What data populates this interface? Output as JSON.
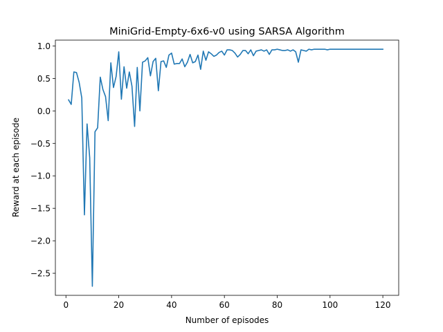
{
  "chart_data": {
    "type": "line",
    "title": "MiniGrid-Empty-6x6-v0 using SARSA Algorithm",
    "xlabel": "Number of episodes",
    "ylabel": "Reward at each episode",
    "xlim": [
      -4,
      126
    ],
    "ylim": [
      -2.84,
      1.09
    ],
    "xticks": [
      0,
      20,
      40,
      60,
      80,
      100,
      120
    ],
    "yticks": [
      1.0,
      0.5,
      0.0,
      -0.5,
      -1.0,
      -1.5,
      -2.0,
      -2.5
    ],
    "xtick_labels": [
      "0",
      "20",
      "40",
      "60",
      "80",
      "100",
      "120"
    ],
    "ytick_labels": [
      "1.0",
      "0.5",
      "0.0",
      "−0.5",
      "−1.0",
      "−1.5",
      "−2.0",
      "−2.5"
    ],
    "grid": false,
    "line_color": "#1f77b4",
    "series": [
      {
        "x": [
          1,
          2,
          3,
          4,
          5,
          6,
          7,
          8,
          9,
          10,
          11,
          12,
          13,
          14,
          15,
          16,
          17,
          18,
          19,
          20,
          21,
          22,
          23,
          24,
          25,
          26,
          27,
          28,
          29,
          30,
          31,
          32,
          33,
          34,
          35,
          36,
          37,
          38,
          39,
          40,
          41,
          42,
          43,
          44,
          45,
          46,
          47,
          48,
          49,
          50,
          51,
          52,
          53,
          54,
          55,
          56,
          57,
          58,
          59,
          60,
          61,
          62,
          63,
          64,
          65,
          66,
          67,
          68,
          69,
          70,
          71,
          72,
          73,
          74,
          75,
          76,
          77,
          78,
          79,
          80,
          81,
          82,
          83,
          84,
          85,
          86,
          87,
          88,
          89,
          90,
          91,
          92,
          93,
          94,
          95,
          96,
          97,
          98,
          99,
          100,
          101,
          102,
          103,
          104,
          105,
          106,
          107,
          108,
          109,
          110,
          111,
          112,
          113,
          114,
          115,
          116,
          117,
          118,
          119,
          120
        ],
        "values": [
          0.17,
          0.1,
          0.6,
          0.59,
          0.44,
          0.2,
          -1.6,
          -0.2,
          -0.72,
          -2.7,
          -0.32,
          -0.26,
          0.52,
          0.33,
          0.22,
          -0.15,
          0.74,
          0.36,
          0.53,
          0.91,
          0.18,
          0.68,
          0.35,
          0.6,
          0.38,
          -0.24,
          0.67,
          0.0,
          0.75,
          0.77,
          0.82,
          0.54,
          0.76,
          0.81,
          0.31,
          0.76,
          0.77,
          0.67,
          0.86,
          0.89,
          0.72,
          0.73,
          0.73,
          0.8,
          0.68,
          0.75,
          0.87,
          0.74,
          0.76,
          0.86,
          0.64,
          0.92,
          0.78,
          0.91,
          0.88,
          0.84,
          0.86,
          0.9,
          0.92,
          0.86,
          0.94,
          0.94,
          0.93,
          0.89,
          0.83,
          0.87,
          0.93,
          0.93,
          0.88,
          0.94,
          0.85,
          0.92,
          0.93,
          0.94,
          0.92,
          0.94,
          0.87,
          0.94,
          0.94,
          0.95,
          0.94,
          0.93,
          0.93,
          0.94,
          0.92,
          0.94,
          0.91,
          0.75,
          0.94,
          0.93,
          0.92,
          0.95,
          0.94,
          0.95,
          0.95,
          0.95,
          0.95,
          0.95,
          0.94,
          0.95,
          0.95,
          0.95,
          0.95,
          0.95,
          0.95,
          0.95,
          0.95,
          0.95,
          0.95,
          0.95,
          0.95,
          0.95,
          0.95,
          0.95,
          0.95,
          0.95,
          0.95,
          0.95,
          0.95,
          0.95
        ]
      }
    ]
  }
}
